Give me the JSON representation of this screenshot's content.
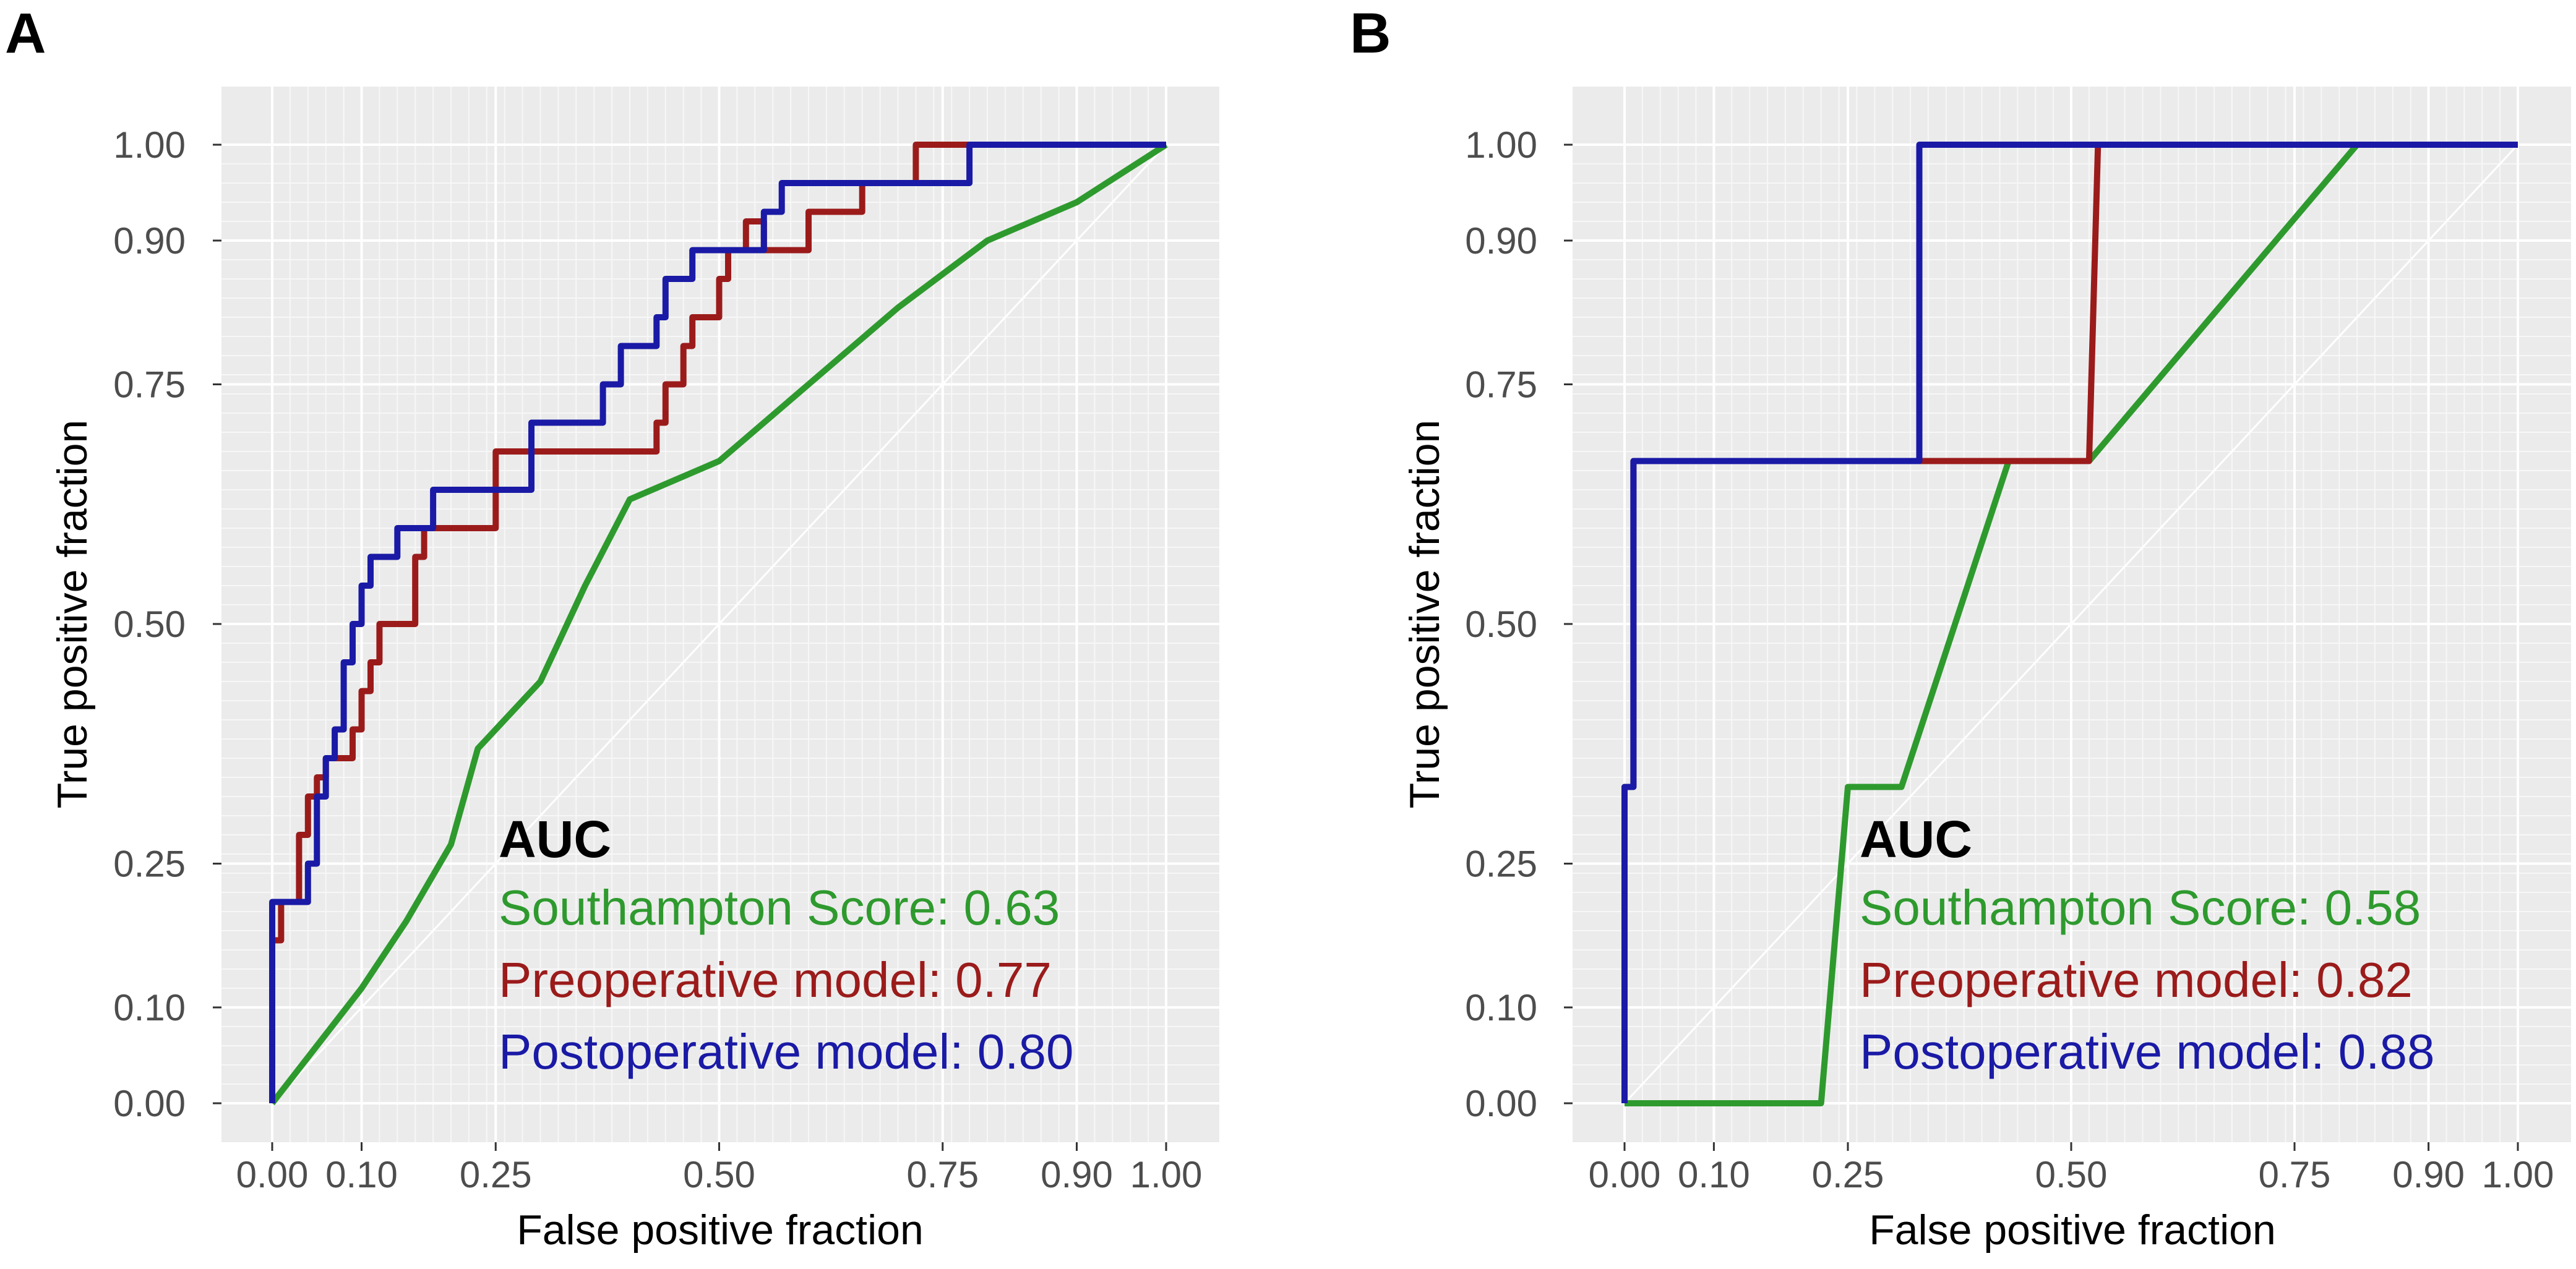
{
  "colors": {
    "panel_bg": "#ebebeb",
    "grid_major": "#ffffff",
    "grid_minor": "#f7f7f7",
    "southampton": "#2e9a2e",
    "preoperative": "#9b1b1b",
    "postoperative": "#1a1aa6"
  },
  "chart_data": [
    {
      "type": "line",
      "panel_label": "A",
      "xlabel": "False positive fraction",
      "ylabel": "True positive fraction",
      "xlim": [
        0,
        1
      ],
      "ylim": [
        0,
        1
      ],
      "x_ticks": [
        {
          "value": 0.0,
          "label": "0.00"
        },
        {
          "value": 0.1,
          "label": "0.10"
        },
        {
          "value": 0.25,
          "label": "0.25"
        },
        {
          "value": 0.5,
          "label": "0.50"
        },
        {
          "value": 0.75,
          "label": "0.75"
        },
        {
          "value": 0.9,
          "label": "0.90"
        },
        {
          "value": 1.0,
          "label": "1.00"
        }
      ],
      "y_ticks": [
        {
          "value": 0.0,
          "label": "0.00"
        },
        {
          "value": 0.1,
          "label": "0.10"
        },
        {
          "value": 0.25,
          "label": "0.25"
        },
        {
          "value": 0.5,
          "label": "0.50"
        },
        {
          "value": 0.75,
          "label": "0.75"
        },
        {
          "value": 0.9,
          "label": "0.90"
        },
        {
          "value": 1.0,
          "label": "1.00"
        }
      ],
      "diagonal_reference": true,
      "legend_title": "AUC",
      "legend_position": "bottom-right",
      "series": [
        {
          "key": "southampton",
          "name": "Southampton Score",
          "auc_text": "Southampton Score: 0.63",
          "points": [
            [
              0,
              0
            ],
            [
              0.05,
              0.06
            ],
            [
              0.1,
              0.12
            ],
            [
              0.15,
              0.19
            ],
            [
              0.2,
              0.27
            ],
            [
              0.23,
              0.37
            ],
            [
              0.3,
              0.44
            ],
            [
              0.35,
              0.54
            ],
            [
              0.4,
              0.63
            ],
            [
              0.45,
              0.65
            ],
            [
              0.5,
              0.67
            ],
            [
              0.55,
              0.71
            ],
            [
              0.6,
              0.75
            ],
            [
              0.7,
              0.83
            ],
            [
              0.8,
              0.9
            ],
            [
              0.9,
              0.94
            ],
            [
              1,
              1
            ]
          ]
        },
        {
          "key": "preoperative",
          "name": "Preoperative model",
          "auc_text": "Preoperative model: 0.77",
          "points": [
            [
              0,
              0
            ],
            [
              0,
              0.17
            ],
            [
              0.01,
              0.17
            ],
            [
              0.01,
              0.21
            ],
            [
              0.03,
              0.21
            ],
            [
              0.03,
              0.28
            ],
            [
              0.04,
              0.28
            ],
            [
              0.04,
              0.32
            ],
            [
              0.05,
              0.32
            ],
            [
              0.05,
              0.34
            ],
            [
              0.06,
              0.34
            ],
            [
              0.06,
              0.36
            ],
            [
              0.09,
              0.36
            ],
            [
              0.09,
              0.39
            ],
            [
              0.1,
              0.39
            ],
            [
              0.1,
              0.43
            ],
            [
              0.11,
              0.43
            ],
            [
              0.11,
              0.46
            ],
            [
              0.12,
              0.46
            ],
            [
              0.12,
              0.5
            ],
            [
              0.16,
              0.5
            ],
            [
              0.16,
              0.57
            ],
            [
              0.17,
              0.57
            ],
            [
              0.17,
              0.6
            ],
            [
              0.25,
              0.6
            ],
            [
              0.25,
              0.68
            ],
            [
              0.43,
              0.68
            ],
            [
              0.43,
              0.71
            ],
            [
              0.44,
              0.71
            ],
            [
              0.44,
              0.75
            ],
            [
              0.46,
              0.75
            ],
            [
              0.46,
              0.79
            ],
            [
              0.47,
              0.79
            ],
            [
              0.47,
              0.82
            ],
            [
              0.5,
              0.82
            ],
            [
              0.5,
              0.86
            ],
            [
              0.51,
              0.86
            ],
            [
              0.51,
              0.89
            ],
            [
              0.53,
              0.89
            ],
            [
              0.53,
              0.92
            ],
            [
              0.55,
              0.92
            ],
            [
              0.55,
              0.89
            ],
            [
              0.6,
              0.89
            ],
            [
              0.6,
              0.93
            ],
            [
              0.66,
              0.93
            ],
            [
              0.66,
              0.96
            ],
            [
              0.72,
              0.96
            ],
            [
              0.72,
              1
            ],
            [
              1,
              1
            ]
          ]
        },
        {
          "key": "postoperative",
          "name": "Postoperative model",
          "auc_text": "Postoperative model: 0.80",
          "points": [
            [
              0,
              0
            ],
            [
              0,
              0.21
            ],
            [
              0.01,
              0.21
            ],
            [
              0.01,
              0.21
            ],
            [
              0.04,
              0.21
            ],
            [
              0.04,
              0.25
            ],
            [
              0.05,
              0.25
            ],
            [
              0.05,
              0.32
            ],
            [
              0.06,
              0.32
            ],
            [
              0.06,
              0.36
            ],
            [
              0.07,
              0.36
            ],
            [
              0.07,
              0.39
            ],
            [
              0.08,
              0.39
            ],
            [
              0.08,
              0.46
            ],
            [
              0.09,
              0.46
            ],
            [
              0.09,
              0.5
            ],
            [
              0.1,
              0.5
            ],
            [
              0.1,
              0.54
            ],
            [
              0.11,
              0.54
            ],
            [
              0.11,
              0.57
            ],
            [
              0.14,
              0.57
            ],
            [
              0.14,
              0.6
            ],
            [
              0.18,
              0.6
            ],
            [
              0.18,
              0.64
            ],
            [
              0.29,
              0.64
            ],
            [
              0.29,
              0.71
            ],
            [
              0.37,
              0.71
            ],
            [
              0.37,
              0.75
            ],
            [
              0.39,
              0.75
            ],
            [
              0.39,
              0.79
            ],
            [
              0.43,
              0.79
            ],
            [
              0.43,
              0.82
            ],
            [
              0.44,
              0.82
            ],
            [
              0.44,
              0.86
            ],
            [
              0.47,
              0.86
            ],
            [
              0.47,
              0.89
            ],
            [
              0.55,
              0.89
            ],
            [
              0.55,
              0.93
            ],
            [
              0.57,
              0.93
            ],
            [
              0.57,
              0.96
            ],
            [
              0.67,
              0.96
            ],
            [
              0.67,
              0.96
            ],
            [
              0.78,
              0.96
            ],
            [
              0.78,
              1
            ],
            [
              1,
              1
            ]
          ]
        }
      ]
    },
    {
      "type": "line",
      "panel_label": "B",
      "xlabel": "False positive fraction",
      "ylabel": "True positive fraction",
      "xlim": [
        0,
        1
      ],
      "ylim": [
        0,
        1
      ],
      "x_ticks": [
        {
          "value": 0.0,
          "label": "0.00"
        },
        {
          "value": 0.1,
          "label": "0.10"
        },
        {
          "value": 0.25,
          "label": "0.25"
        },
        {
          "value": 0.5,
          "label": "0.50"
        },
        {
          "value": 0.75,
          "label": "0.75"
        },
        {
          "value": 0.9,
          "label": "0.90"
        },
        {
          "value": 1.0,
          "label": "1.00"
        }
      ],
      "y_ticks": [
        {
          "value": 0.0,
          "label": "0.00"
        },
        {
          "value": 0.1,
          "label": "0.10"
        },
        {
          "value": 0.25,
          "label": "0.25"
        },
        {
          "value": 0.5,
          "label": "0.50"
        },
        {
          "value": 0.75,
          "label": "0.75"
        },
        {
          "value": 0.9,
          "label": "0.90"
        },
        {
          "value": 1.0,
          "label": "1.00"
        }
      ],
      "diagonal_reference": true,
      "legend_title": "AUC",
      "legend_position": "bottom-right",
      "series": [
        {
          "key": "southampton",
          "name": "Southampton Score",
          "auc_text": "Southampton Score: 0.58",
          "points": [
            [
              0,
              0
            ],
            [
              0.22,
              0
            ],
            [
              0.25,
              0.33
            ],
            [
              0.31,
              0.33
            ],
            [
              0.43,
              0.67
            ],
            [
              0.52,
              0.67
            ],
            [
              0.82,
              1
            ],
            [
              1,
              1
            ]
          ]
        },
        {
          "key": "preoperative",
          "name": "Preoperative model",
          "auc_text": "Preoperative model: 0.82",
          "points": [
            [
              0,
              0
            ],
            [
              0,
              0.33
            ],
            [
              0.01,
              0.33
            ],
            [
              0.01,
              0.67
            ],
            [
              0.52,
              0.67
            ],
            [
              0.53,
              1
            ],
            [
              1,
              1
            ]
          ]
        },
        {
          "key": "postoperative",
          "name": "Postoperative model",
          "auc_text": "Postoperative model: 0.88",
          "points": [
            [
              0,
              0
            ],
            [
              0,
              0.33
            ],
            [
              0.01,
              0.33
            ],
            [
              0.01,
              0.67
            ],
            [
              0.33,
              0.67
            ],
            [
              0.33,
              1
            ],
            [
              1,
              1
            ]
          ]
        }
      ]
    }
  ]
}
